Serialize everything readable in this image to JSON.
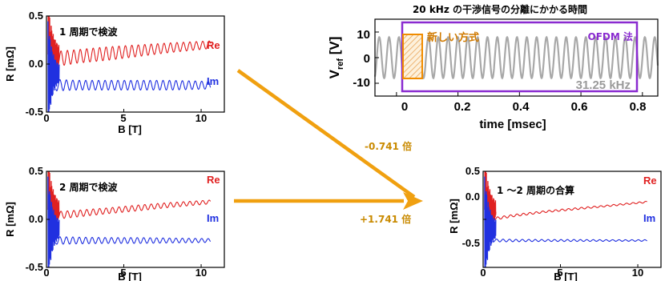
{
  "chart_data": [
    {
      "id": "p1",
      "type": "line",
      "title": "1 周期で検波",
      "xlabel": "B [T]",
      "ylabel": "R [mΩ]",
      "xlim": [
        0,
        11.5
      ],
      "ylim": [
        -0.5,
        0.5
      ],
      "xticks": [
        "0",
        "5",
        "10"
      ],
      "yticks": [
        "0.5",
        "0.0",
        "-0.5"
      ],
      "series": [
        {
          "name": "Re",
          "color": "#e02020",
          "x": [
            0.5,
            2,
            4,
            6,
            8,
            10.5
          ],
          "center": [
            0.05,
            0.08,
            0.11,
            0.14,
            0.17,
            0.2
          ],
          "amplitude": [
            0.08,
            0.07,
            0.07,
            0.06,
            0.05,
            0.04
          ]
        },
        {
          "name": "Im",
          "color": "#2030e0",
          "x": [
            0.5,
            2,
            4,
            6,
            8,
            10.5
          ],
          "center": [
            -0.22,
            -0.22,
            -0.22,
            -0.22,
            -0.22,
            -0.22
          ],
          "amplitude": [
            0.06,
            0.05,
            0.05,
            0.05,
            0.05,
            0.04
          ]
        }
      ]
    },
    {
      "id": "p2",
      "type": "line",
      "title": "2 周期で検波",
      "xlabel": "B [T]",
      "ylabel": "R [mΩ]",
      "xlim": [
        0,
        11.5
      ],
      "ylim": [
        -0.5,
        0.5
      ],
      "xticks": [
        "0",
        "5",
        "10"
      ],
      "yticks": [
        "0.5",
        "0.0",
        "-0.5"
      ],
      "series": [
        {
          "name": "Re",
          "color": "#e02020",
          "x": [
            0.5,
            2,
            4,
            6,
            8,
            10.5
          ],
          "center": [
            0.04,
            0.06,
            0.09,
            0.12,
            0.15,
            0.18
          ],
          "amplitude": [
            0.04,
            0.035,
            0.03,
            0.03,
            0.025,
            0.02
          ]
        },
        {
          "name": "Im",
          "color": "#2030e0",
          "x": [
            0.5,
            2,
            4,
            6,
            8,
            10.5
          ],
          "center": [
            -0.22,
            -0.22,
            -0.22,
            -0.22,
            -0.22,
            -0.22
          ],
          "amplitude": [
            0.04,
            0.035,
            0.03,
            0.03,
            0.025,
            0.02
          ]
        }
      ]
    },
    {
      "id": "p3",
      "type": "line",
      "title": "20 kHz の干渉信号の分離にかかる時間",
      "xlabel": "time [msec]",
      "ylabel": "V_ref [V]",
      "xlim": [
        -0.07,
        0.85
      ],
      "ylim": [
        -15,
        15
      ],
      "xticks": [
        "0",
        "0.2",
        "0.4",
        "0.6",
        "0.8"
      ],
      "yticks": [
        "10",
        "0",
        "-10"
      ],
      "series": [
        {
          "name": "31.25 kHz",
          "color": "#a8a8a8",
          "frequency_khz": 31.25,
          "amplitude": 8
        }
      ],
      "annotations": [
        {
          "text": "新しい方式",
          "color": "#f08c00",
          "x_range": [
            0,
            0.064
          ]
        },
        {
          "text": "OFDM 法",
          "color": "#8a2bd0",
          "x_range": [
            0,
            0.8
          ]
        },
        {
          "text": "31.25 kHz",
          "color": "#9a9a9a"
        }
      ]
    },
    {
      "id": "p4",
      "type": "line",
      "title": "1 ～2 周期の合算",
      "xlabel": "B [T]",
      "ylabel": "R [mΩ]",
      "xlim": [
        0,
        11.5
      ],
      "ylim": [
        -0.5,
        0.5
      ],
      "xticks": [
        "0",
        "5",
        "10"
      ],
      "yticks": [
        "0.5",
        "0.0",
        "-0.5"
      ],
      "series": [
        {
          "name": "Re",
          "color": "#e02020",
          "x": [
            0.5,
            2,
            4,
            6,
            8,
            10.5
          ],
          "center": [
            0.0,
            0.04,
            0.08,
            0.11,
            0.14,
            0.18
          ],
          "amplitude": [
            0.015,
            0.012,
            0.01,
            0.01,
            0.008,
            0.008
          ]
        },
        {
          "name": "Im",
          "color": "#2030e0",
          "x": [
            0.5,
            2,
            4,
            6,
            8,
            10.5
          ],
          "center": [
            -0.22,
            -0.22,
            -0.22,
            -0.22,
            -0.22,
            -0.22
          ],
          "amplitude": [
            0.015,
            0.012,
            0.01,
            0.01,
            0.008,
            0.008
          ]
        }
      ]
    }
  ],
  "arrows": {
    "color": "#f0a010",
    "factor_top": "-0.741 倍",
    "factor_bottom": "+1.741 倍"
  }
}
